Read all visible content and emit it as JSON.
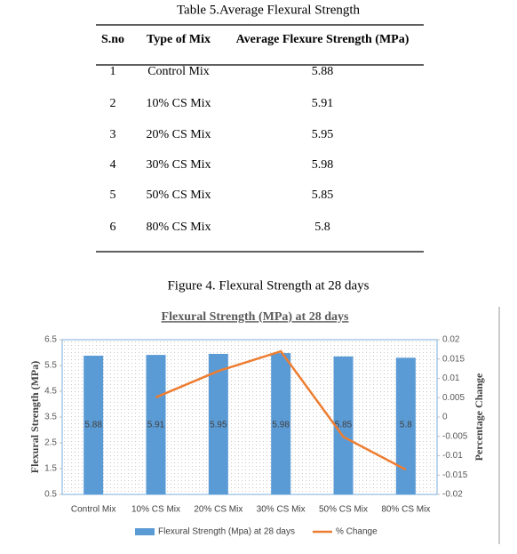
{
  "table_caption": "Table 5.Average Flexural Strength",
  "table": {
    "header": [
      "S.no",
      "Type of Mix",
      "Average Flexure Strength (MPa)"
    ],
    "rows": [
      [
        1,
        "Control Mix",
        5.88
      ],
      [
        2,
        "10% CS Mix",
        5.91
      ],
      [
        3,
        "20% CS Mix",
        5.95
      ],
      [
        4,
        "30% CS Mix",
        5.98
      ],
      [
        5,
        "50% CS Mix",
        5.85
      ],
      [
        6,
        "80% CS Mix",
        5.8
      ]
    ]
  },
  "figure_caption": "Figure 4. Flexural Strength at 28 days",
  "chart_data": {
    "type": "bar",
    "title": "Flexural Strength (MPa) at 28 days",
    "y_label": "Flexural Strength (MPa)",
    "y2_label": "Percentage Change",
    "categories": [
      "Control Mix",
      "10% CS Mix",
      "20% CS Mix",
      "30% CS Mix",
      "50% CS Mix",
      "80% CS Mix"
    ],
    "series": [
      {
        "name": "Flexural Strength (Mpa) at 28 days",
        "color": "#5b9bd5",
        "values": [
          5.88,
          5.91,
          5.95,
          5.98,
          5.85,
          5.8
        ]
      },
      {
        "name": "% Change",
        "color": "#ed7d31",
        "type": "line",
        "axis": "y2",
        "values": [
          null,
          0.0051,
          0.0119,
          0.017,
          -0.0051,
          -0.0136
        ]
      }
    ],
    "ylim": [
      0.5,
      6.5
    ],
    "yticks": [
      0.5,
      1.5,
      2.5,
      3.5,
      4.5,
      5.5,
      6.5
    ],
    "y2lim": [
      -0.02,
      0.02
    ],
    "y2ticks": [
      -0.02,
      -0.015,
      -0.01,
      -0.005,
      0,
      0.005,
      0.01,
      0.015,
      0.02
    ],
    "legend": "bottom"
  }
}
